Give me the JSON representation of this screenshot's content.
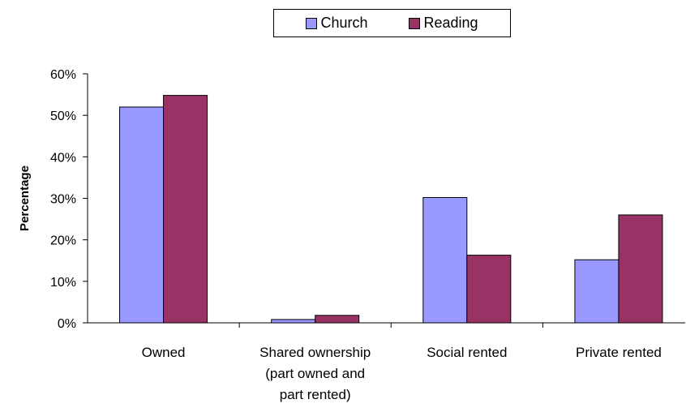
{
  "chart_data": {
    "type": "bar",
    "categories": [
      [
        "Owned"
      ],
      [
        "Shared ownership",
        "(part owned and",
        "part rented)"
      ],
      [
        "Social rented"
      ],
      [
        "Private rented"
      ]
    ],
    "series": [
      {
        "name": "Church",
        "color": "#9999ff",
        "values": [
          52,
          0.8,
          30.2,
          15.2
        ]
      },
      {
        "name": "Reading",
        "color": "#993366",
        "values": [
          54.8,
          1.8,
          16.3,
          26
        ]
      }
    ],
    "ylabel": "Percentage",
    "ylim": [
      0,
      60
    ],
    "yticks": [
      "0%",
      "10%",
      "20%",
      "30%",
      "40%",
      "50%",
      "60%"
    ],
    "grid": false,
    "legend_position": "top"
  }
}
